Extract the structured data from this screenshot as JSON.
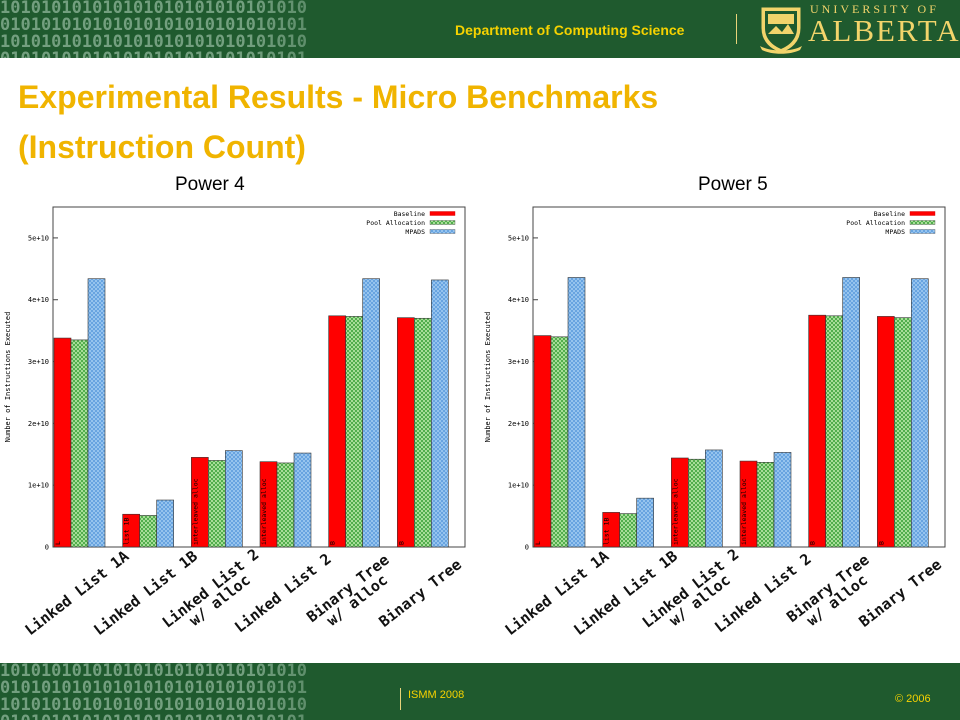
{
  "header": {
    "department": "Department of Computing Science",
    "university_line1": "UNIVERSITY OF",
    "university_line2": "ALBERTA",
    "background_binary": "101010101010101010101010101010\n010101010101010101010101010101\n101010101010101010101010101010\n010101010101010101010101010101"
  },
  "slide": {
    "title_line1": "Experimental Results - Micro Benchmarks",
    "title_line2": "(Instruction Count)"
  },
  "footer": {
    "left": "ISMM 2008",
    "right": "© 2006"
  },
  "colors": {
    "header_bg": "#1f5a2e",
    "title": "#f0b400",
    "baseline": "#ff0000",
    "pool": "#b8e6a6",
    "mpads": "#9cc8f0"
  },
  "chart_data": [
    {
      "type": "bar",
      "title": "Power 4",
      "ylabel": "Number of Instructions Executed",
      "ylim": [
        0,
        55000000000
      ],
      "yticks": [
        "0",
        "1e+10",
        "2e+10",
        "3e+10",
        "4e+10",
        "5e+10"
      ],
      "legend": "top-right",
      "categories": [
        "Linked List 1A",
        "Linked List 1B",
        "Linked List 2 w/ alloc",
        "Linked List 2",
        "Binary Tree w/ alloc",
        "Binary Tree"
      ],
      "bar_labels": [
        "L",
        "list 1B",
        "interleaved alloc",
        "interleaved alloc",
        "B",
        "B"
      ],
      "series": [
        {
          "name": "Baseline",
          "values": [
            33800000000,
            5300000000,
            14500000000,
            13800000000,
            37400000000,
            37100000000
          ]
        },
        {
          "name": "Pool Allocation",
          "values": [
            33500000000,
            5100000000,
            14000000000,
            13600000000,
            37300000000,
            37000000000
          ]
        },
        {
          "name": "MPADS",
          "values": [
            43400000000,
            7600000000,
            15600000000,
            15200000000,
            43400000000,
            43200000000
          ]
        }
      ]
    },
    {
      "type": "bar",
      "title": "Power 5",
      "ylabel": "Number of Instructions Executed",
      "ylim": [
        0,
        55000000000
      ],
      "yticks": [
        "0",
        "1e+10",
        "2e+10",
        "3e+10",
        "4e+10",
        "5e+10"
      ],
      "legend": "top-right",
      "categories": [
        "Linked List 1A",
        "Linked List 1B",
        "Linked List 2 w/ alloc",
        "Linked List 2",
        "Binary Tree w/ alloc",
        "Binary Tree"
      ],
      "bar_labels": [
        "L",
        "list 1B",
        "interleaved alloc",
        "interleaved alloc",
        "B",
        "B"
      ],
      "series": [
        {
          "name": "Baseline",
          "values": [
            34200000000,
            5600000000,
            14400000000,
            13900000000,
            37500000000,
            37300000000
          ]
        },
        {
          "name": "Pool Allocation",
          "values": [
            34000000000,
            5400000000,
            14200000000,
            13700000000,
            37400000000,
            37100000000
          ]
        },
        {
          "name": "MPADS",
          "values": [
            43600000000,
            7900000000,
            15700000000,
            15300000000,
            43600000000,
            43400000000
          ]
        }
      ]
    }
  ]
}
